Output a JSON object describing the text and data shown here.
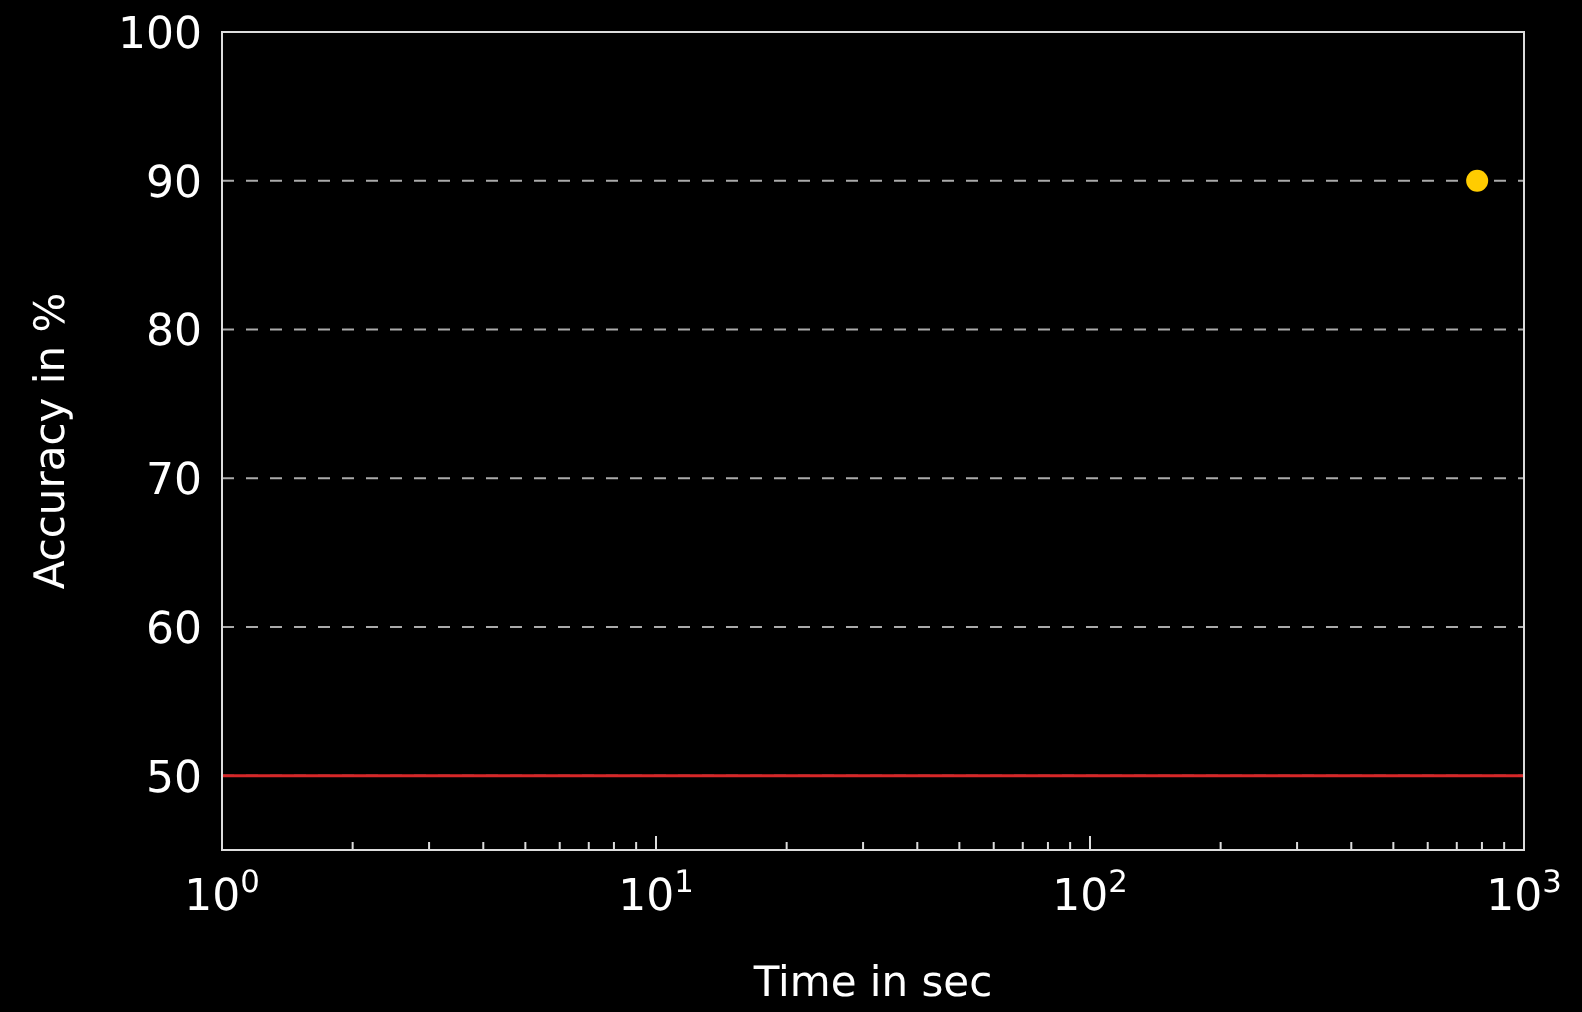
{
  "chart_data": {
    "type": "scatter",
    "xlabel": "Time in sec",
    "ylabel": "Accuracy in %",
    "x": [
      780
    ],
    "values": [
      90
    ],
    "color": "#ffcc00",
    "marker": "circle",
    "log": "x",
    "xlim": [
      1,
      1000
    ],
    "ylim": [
      45,
      100
    ],
    "xticks": [
      {
        "value": 1,
        "label": "10$^{0}$"
      },
      {
        "value": 2,
        "label": null
      },
      {
        "value": 3,
        "label": null
      },
      {
        "value": 4,
        "label": null
      },
      {
        "value": 5,
        "label": null
      },
      {
        "value": 6,
        "label": null
      },
      {
        "value": 7,
        "label": null
      },
      {
        "value": 8,
        "label": null
      },
      {
        "value": 9,
        "label": null
      },
      {
        "value": 10,
        "label": "10$^{1}$"
      },
      {
        "value": 20,
        "label": null
      },
      {
        "value": 30,
        "label": null
      },
      {
        "value": 40,
        "label": null
      },
      {
        "value": 50,
        "label": null
      },
      {
        "value": 60,
        "label": null
      },
      {
        "value": 70,
        "label": null
      },
      {
        "value": 80,
        "label": null
      },
      {
        "value": 90,
        "label": null
      },
      {
        "value": 100,
        "label": "10$^{2}$"
      },
      {
        "value": 200,
        "label": null
      },
      {
        "value": 300,
        "label": null
      },
      {
        "value": 400,
        "label": null
      },
      {
        "value": 500,
        "label": null
      },
      {
        "value": 600,
        "label": null
      },
      {
        "value": 700,
        "label": null
      },
      {
        "value": 800,
        "label": null
      },
      {
        "value": 900,
        "label": null
      },
      {
        "value": 1000,
        "label": "10$^{3}$"
      }
    ],
    "yticks": [
      50,
      60,
      70,
      80,
      90,
      100
    ],
    "grid": "y",
    "ref_lines": [
      {
        "axis": "y",
        "value": 50,
        "color": "#d62728",
        "line_style": "solid"
      }
    ]
  }
}
